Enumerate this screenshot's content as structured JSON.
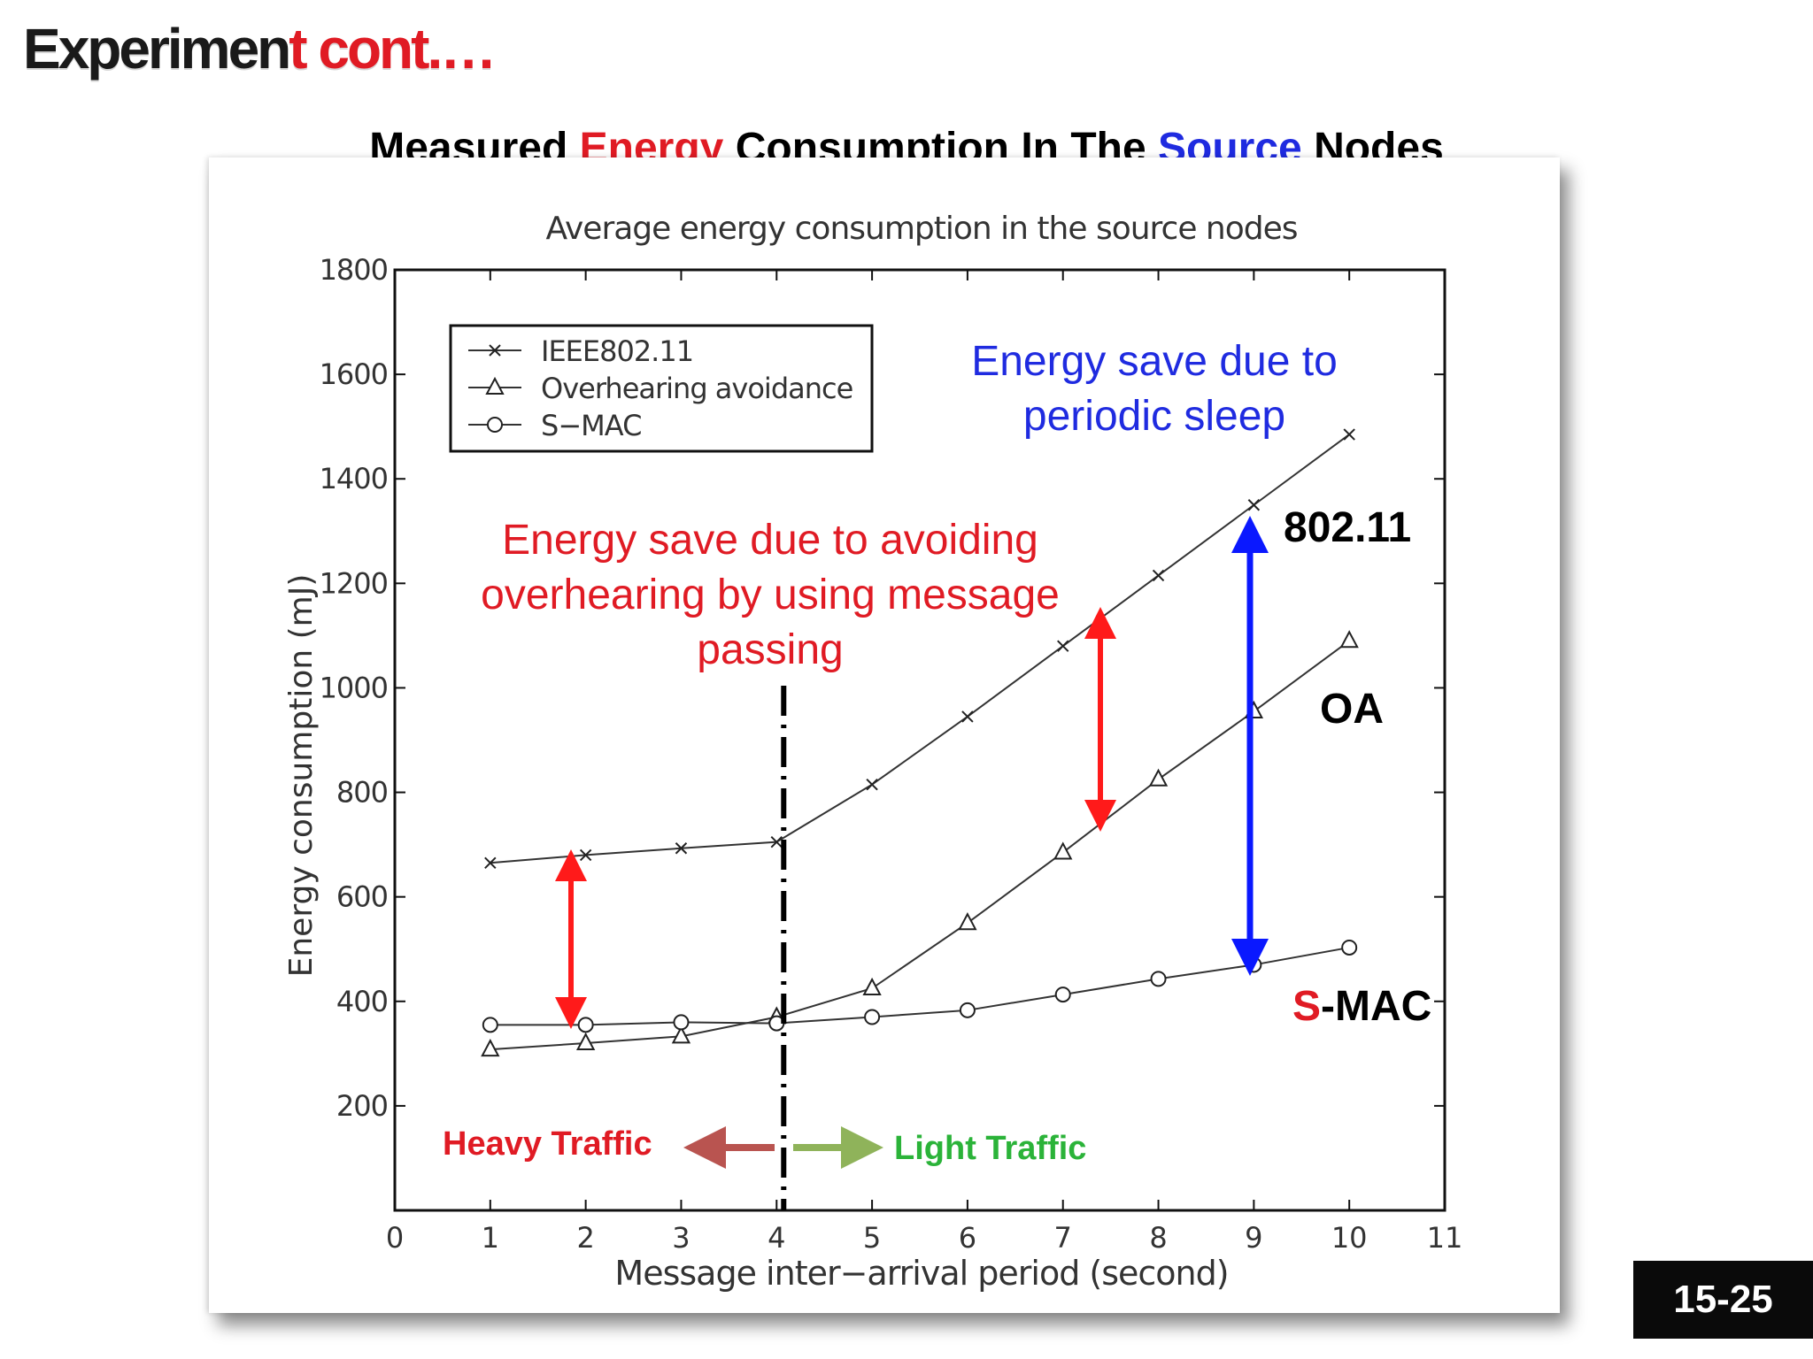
{
  "slide": {
    "title_main": "Experimen",
    "title_accent": "t cont.…",
    "subtitle": [
      {
        "text": "Measured ",
        "color": "#000000"
      },
      {
        "text": "Energy",
        "color": "#e01b24"
      },
      {
        "text": " Consumption In The ",
        "color": "#000000"
      },
      {
        "text": "Source",
        "color": "#1f2be0"
      },
      {
        "text": " Nodes",
        "color": "#000000"
      }
    ],
    "page_number": "15-25"
  },
  "chart_data": {
    "type": "line",
    "title": "Average energy consumption in the source nodes",
    "xlabel": "Message inter−arrival period (second)",
    "ylabel": "Energy consumption (mJ)",
    "xlim": [
      0,
      11
    ],
    "ylim": [
      0,
      1800
    ],
    "xticks": [
      0,
      1,
      2,
      3,
      4,
      5,
      6,
      7,
      8,
      9,
      10,
      11
    ],
    "yticks": [
      200,
      400,
      600,
      800,
      1000,
      1200,
      1400,
      1600,
      1800
    ],
    "grid": false,
    "legend_position": "top-left",
    "x": [
      1,
      2,
      3,
      4,
      5,
      6,
      7,
      8,
      9,
      10
    ],
    "series": [
      {
        "name": "IEEE802.11",
        "marker": "x",
        "values": [
          665,
          680,
          693,
          705,
          815,
          945,
          1080,
          1215,
          1350,
          1485
        ]
      },
      {
        "name": "Overhearing avoidance",
        "marker": "triangle",
        "values": [
          308,
          320,
          333,
          370,
          425,
          550,
          685,
          825,
          955,
          1090
        ]
      },
      {
        "name": "S−MAC",
        "marker": "circle",
        "values": [
          355,
          355,
          360,
          358,
          370,
          383,
          413,
          443,
          470,
          503
        ]
      }
    ],
    "divider_x": 4,
    "annotations": {
      "oh_text": [
        "Energy save due to avoiding",
        "overhearing by using message",
        "passing"
      ],
      "oh_color": "#e01b24",
      "sleep_text": [
        "Energy save due to",
        "periodic sleep"
      ],
      "sleep_color": "#1f2be0",
      "label_80211": "802.11",
      "label_oa": "OA",
      "label_smac_s": "S",
      "label_smac_rest": "-MAC",
      "heavy": "Heavy Traffic",
      "heavy_color": "#e01b24",
      "heavy_arrow_color": "#b95450",
      "light": "Light Traffic",
      "light_color": "#2bb339",
      "light_arrow_color": "#8fb35a",
      "arrow_red_color": "#ff1a1a",
      "arrow_blue_color": "#0a18ff"
    }
  }
}
